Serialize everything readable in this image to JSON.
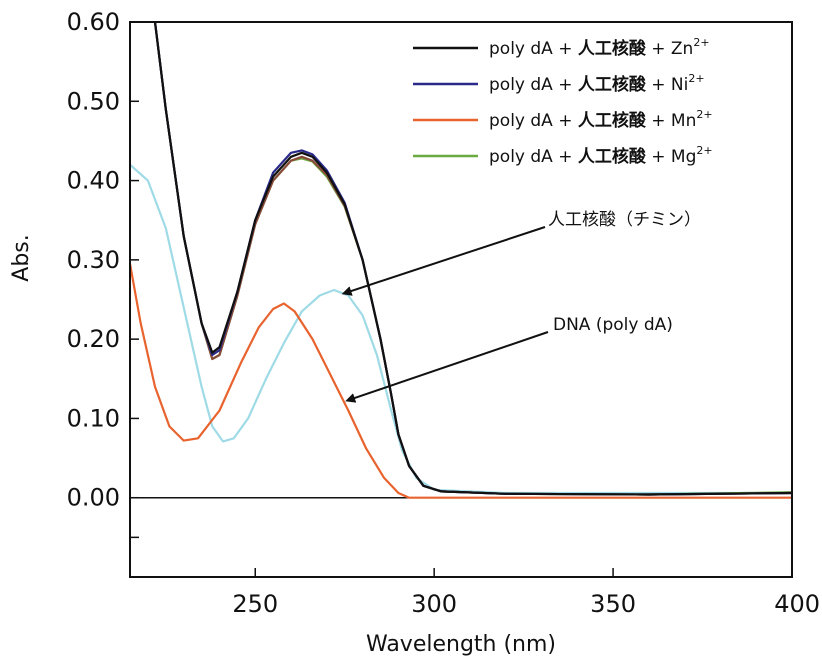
{
  "chart_data": {
    "type": "line",
    "xlabel": "Wavelength (nm)",
    "ylabel": "Abs.",
    "xlim": [
      215,
      400
    ],
    "ylim": [
      -0.1,
      0.6
    ],
    "x_ticks": [
      "250",
      "300",
      "350",
      "400"
    ],
    "x_tick_values": [
      250,
      300,
      350,
      400
    ],
    "y_ticks": [
      "0.60",
      "0.50",
      "0.40",
      "0.30",
      "0.20",
      "0.10",
      "0.00"
    ],
    "y_tick_values": [
      0.6,
      0.5,
      0.4,
      0.3,
      0.2,
      0.1,
      0.0
    ],
    "grid": false,
    "legend_position": "top-right",
    "series": [
      {
        "name_parts": [
          "poly dA + ",
          "人工核酸",
          " + Zn",
          "2+"
        ],
        "color": "#111111",
        "points": [
          [
            222,
            0.6
          ],
          [
            225,
            0.49
          ],
          [
            230,
            0.33
          ],
          [
            235,
            0.22
          ],
          [
            238,
            0.183
          ],
          [
            240,
            0.19
          ],
          [
            245,
            0.26
          ],
          [
            250,
            0.35
          ],
          [
            255,
            0.405
          ],
          [
            260,
            0.43
          ],
          [
            263,
            0.435
          ],
          [
            266,
            0.43
          ],
          [
            270,
            0.41
          ],
          [
            275,
            0.37
          ],
          [
            280,
            0.3
          ],
          [
            285,
            0.2
          ],
          [
            288,
            0.13
          ],
          [
            290,
            0.08
          ],
          [
            293,
            0.04
          ],
          [
            297,
            0.015
          ],
          [
            302,
            0.008
          ],
          [
            320,
            0.005
          ],
          [
            360,
            0.004
          ],
          [
            400,
            0.006
          ]
        ]
      },
      {
        "name_parts": [
          "poly dA + ",
          "人工核酸",
          " + Ni",
          "2+"
        ],
        "color": "#2b2a8a",
        "points": [
          [
            222,
            0.6
          ],
          [
            225,
            0.49
          ],
          [
            230,
            0.33
          ],
          [
            235,
            0.22
          ],
          [
            238,
            0.18
          ],
          [
            240,
            0.186
          ],
          [
            245,
            0.26
          ],
          [
            250,
            0.35
          ],
          [
            255,
            0.41
          ],
          [
            260,
            0.435
          ],
          [
            263,
            0.438
          ],
          [
            266,
            0.433
          ],
          [
            270,
            0.413
          ],
          [
            275,
            0.372
          ],
          [
            280,
            0.3
          ],
          [
            285,
            0.2
          ],
          [
            288,
            0.13
          ],
          [
            290,
            0.08
          ],
          [
            293,
            0.04
          ],
          [
            297,
            0.015
          ],
          [
            302,
            0.008
          ],
          [
            320,
            0.005
          ],
          [
            360,
            0.004
          ],
          [
            400,
            0.006
          ]
        ]
      },
      {
        "name_parts": [
          "poly dA + ",
          "人工核酸",
          " + Mn",
          "2+"
        ],
        "color": "#8a4a3a",
        "points": [
          [
            222,
            0.6
          ],
          [
            225,
            0.49
          ],
          [
            230,
            0.33
          ],
          [
            235,
            0.22
          ],
          [
            238,
            0.175
          ],
          [
            240,
            0.18
          ],
          [
            245,
            0.255
          ],
          [
            250,
            0.345
          ],
          [
            255,
            0.4
          ],
          [
            260,
            0.425
          ],
          [
            263,
            0.43
          ],
          [
            266,
            0.425
          ],
          [
            270,
            0.407
          ],
          [
            275,
            0.368
          ],
          [
            280,
            0.3
          ],
          [
            285,
            0.2
          ],
          [
            288,
            0.13
          ],
          [
            290,
            0.08
          ],
          [
            293,
            0.04
          ],
          [
            297,
            0.015
          ],
          [
            302,
            0.008
          ],
          [
            320,
            0.005
          ],
          [
            360,
            0.004
          ],
          [
            400,
            0.006
          ]
        ]
      },
      {
        "name_parts": [
          "poly dA + ",
          "人工核酸",
          " + Mg",
          "2+"
        ],
        "color": "#6aaa40",
        "points": [
          [
            222,
            0.6
          ],
          [
            225,
            0.49
          ],
          [
            230,
            0.33
          ],
          [
            235,
            0.22
          ],
          [
            238,
            0.175
          ],
          [
            240,
            0.18
          ],
          [
            245,
            0.255
          ],
          [
            250,
            0.345
          ],
          [
            255,
            0.4
          ],
          [
            260,
            0.425
          ],
          [
            263,
            0.428
          ],
          [
            266,
            0.424
          ],
          [
            270,
            0.405
          ],
          [
            275,
            0.367
          ],
          [
            280,
            0.3
          ],
          [
            285,
            0.2
          ],
          [
            288,
            0.13
          ],
          [
            290,
            0.08
          ],
          [
            293,
            0.04
          ],
          [
            297,
            0.015
          ],
          [
            302,
            0.008
          ],
          [
            320,
            0.005
          ],
          [
            360,
            0.004
          ],
          [
            400,
            0.007
          ]
        ]
      },
      {
        "name": "人工核酸（チミン）",
        "color": "#9fdbe6",
        "points": [
          [
            215,
            0.42
          ],
          [
            220,
            0.4
          ],
          [
            225,
            0.34
          ],
          [
            230,
            0.24
          ],
          [
            235,
            0.14
          ],
          [
            238,
            0.09
          ],
          [
            241,
            0.071
          ],
          [
            244,
            0.075
          ],
          [
            248,
            0.1
          ],
          [
            253,
            0.15
          ],
          [
            258,
            0.195
          ],
          [
            263,
            0.235
          ],
          [
            268,
            0.255
          ],
          [
            272,
            0.262
          ],
          [
            276,
            0.255
          ],
          [
            280,
            0.23
          ],
          [
            284,
            0.18
          ],
          [
            288,
            0.11
          ],
          [
            291,
            0.06
          ],
          [
            295,
            0.025
          ],
          [
            300,
            0.01
          ],
          [
            320,
            0.006
          ],
          [
            400,
            0.006
          ]
        ]
      },
      {
        "name": "DNA (poly dA)",
        "color": "#e8632e",
        "points": [
          [
            215,
            0.295
          ],
          [
            218,
            0.22
          ],
          [
            222,
            0.14
          ],
          [
            226,
            0.09
          ],
          [
            230,
            0.072
          ],
          [
            234,
            0.075
          ],
          [
            240,
            0.11
          ],
          [
            246,
            0.17
          ],
          [
            251,
            0.215
          ],
          [
            255,
            0.238
          ],
          [
            258,
            0.245
          ],
          [
            261,
            0.235
          ],
          [
            266,
            0.2
          ],
          [
            271,
            0.155
          ],
          [
            276,
            0.11
          ],
          [
            281,
            0.062
          ],
          [
            286,
            0.025
          ],
          [
            290,
            0.006
          ],
          [
            293,
            0.0
          ],
          [
            400,
            0.0
          ]
        ]
      }
    ],
    "annotations": [
      {
        "text": "人工核酸（チミン）",
        "target": [
          273,
          0.255
        ],
        "label_pos": "upper-right"
      },
      {
        "text": "DNA (poly dA)",
        "target": [
          274,
          0.12
        ],
        "label_pos": "right"
      }
    ]
  }
}
